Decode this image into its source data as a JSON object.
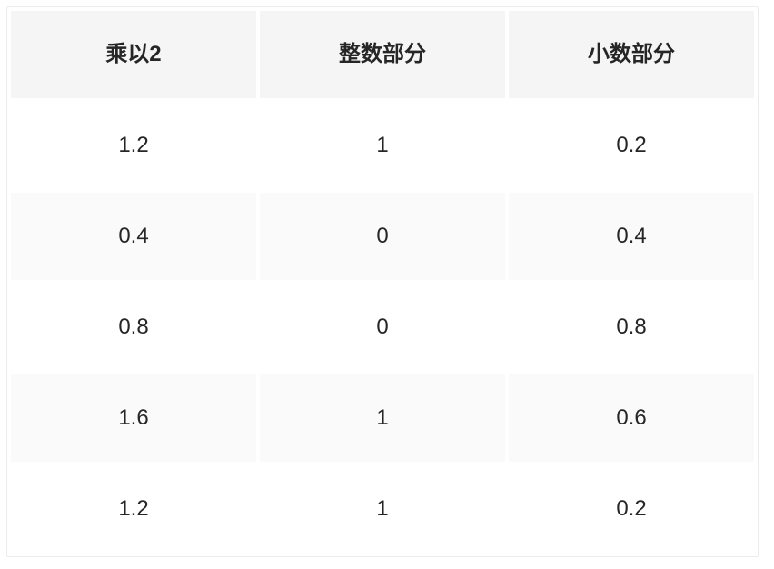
{
  "chart_data": {
    "type": "table",
    "columns": [
      "乘以2",
      "整数部分",
      "小数部分"
    ],
    "rows": [
      [
        "1.2",
        "1",
        "0.2"
      ],
      [
        "0.4",
        "0",
        "0.4"
      ],
      [
        "0.8",
        "0",
        "0.8"
      ],
      [
        "1.6",
        "1",
        "0.6"
      ],
      [
        "1.2",
        "1",
        "0.2"
      ]
    ],
    "layout": {
      "zebra_striping": true,
      "striped_row_indices": [
        1,
        3
      ],
      "header_position": "top",
      "cell_alignment": "center"
    }
  },
  "colors": {
    "header_bg": "#f5f5f5",
    "stripe_bg": "#fafafa",
    "row_bg": "#ffffff",
    "table_border": "#ececec",
    "text": "#262626",
    "gutter": "#ffffff"
  }
}
